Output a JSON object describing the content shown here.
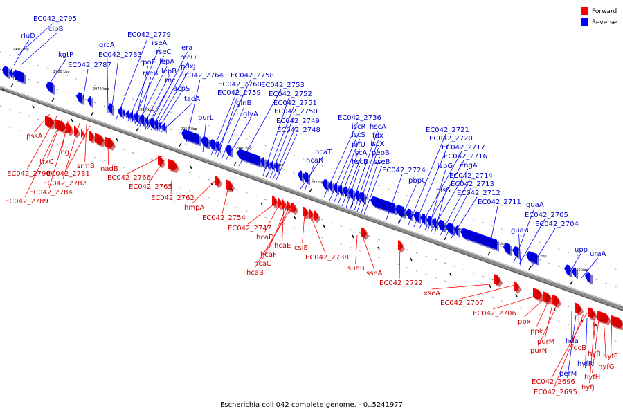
{
  "caption": "Escherichia coli 042 complete genome. - 0..5241977",
  "legend": [
    {
      "label": "Forward",
      "color": "#ff0000"
    },
    {
      "label": "Reverse",
      "color": "#0000ff"
    }
  ],
  "colors": {
    "forward": "#ff0000",
    "reverse": "#0000ff",
    "backbone": "#888888",
    "forward_label": "#cc0000",
    "reverse_label": "#0000cc"
  },
  "ticks": [
    "2990 kbp",
    "2980 kbp",
    "2970 kbp",
    "2960 kbp",
    "2950 kbp",
    "2940 kbp",
    "2930 kbp",
    "2920 kbp",
    "2910 kbp",
    "2900 kbp",
    "2890 kbp",
    "2880 kbp",
    "2870 kbp",
    "2860 kbp"
  ],
  "reverse_labels": [
    "EC042_2795",
    "rluD",
    "clpB",
    "kgtP",
    "EC042_2787",
    "grcA",
    "EC042_2783",
    "EC042_2779",
    "rseA",
    "rseC",
    "rpoE",
    "lepA",
    "rseB",
    "lepB",
    "rnc",
    "era",
    "recO",
    "pdxJ",
    "acpS",
    "tadA",
    "EC042_2764",
    "purL",
    "EC042_2760",
    "EC042_2758",
    "EC042_2759",
    "glnB",
    "glyA",
    "EC042_2753",
    "EC042_2752",
    "EC042_2751",
    "EC042_2750",
    "EC042_2749",
    "EC042_2748",
    "hcaT",
    "hcaR",
    "EC042_2736",
    "iscR",
    "iscS",
    "nifU",
    "iscA",
    "hscB",
    "hscA",
    "fdx",
    "iscX",
    "pepB",
    "sseB",
    "EC042_2724",
    "pbpC",
    "EC042_2721",
    "EC042_2720",
    "EC042_2717",
    "EC042_2716",
    "ispG",
    "engA",
    "hisS",
    "EC042_2714",
    "EC042_2713",
    "EC042_2712",
    "EC042_2711",
    "guaA",
    "EC042_2705",
    "guaB",
    "EC042_2704",
    "upp",
    "uraA",
    "hda",
    "perM",
    "hyfR"
  ],
  "forward_labels": [
    "pssA",
    "ung",
    "trxC",
    "srmB",
    "EC042_2790",
    "EC042_2781",
    "EC042_2782",
    "EC042_2784",
    "EC042_2789",
    "nadB",
    "EC042_2766",
    "EC042_2765",
    "EC042_2762",
    "hmpA",
    "EC042_2754",
    "EC042_2747",
    "hcaD",
    "hcaE",
    "hcaF",
    "hcaC",
    "hcaB",
    "csiE",
    "EC042_2738",
    "suhB",
    "sseA",
    "EC042_2722",
    "xseA",
    "EC042_2707",
    "EC042_2706",
    "ppx",
    "ppk",
    "purM",
    "purN",
    "focB",
    "hyfI",
    "hyfF",
    "hyfG",
    "hyfH",
    "hyfJ",
    "EC042_2696",
    "EC042_2695"
  ]
}
